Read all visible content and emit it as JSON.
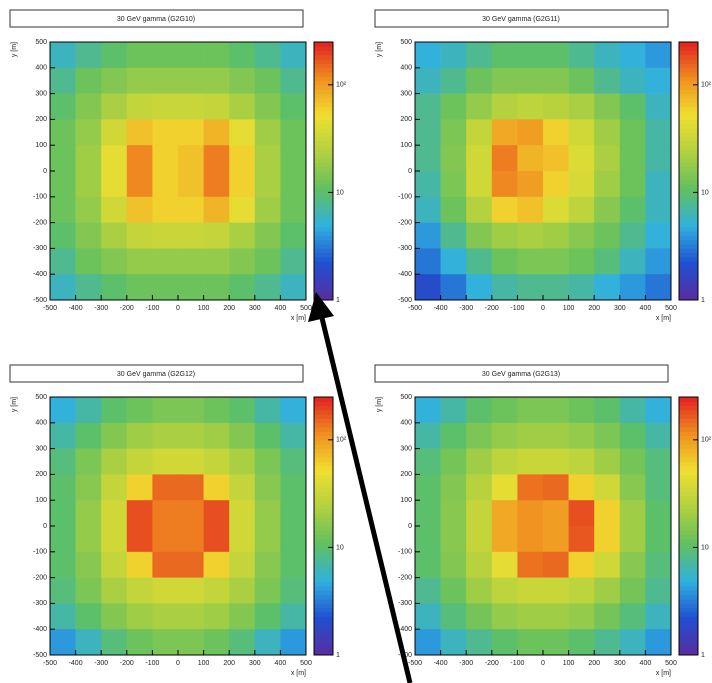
{
  "chart_data": [
    {
      "type": "heatmap",
      "title": "30 GeV gamma (G2G10)",
      "xlabel": "x [m]",
      "ylabel": "y [m]",
      "x": [
        -450,
        -350,
        -250,
        -150,
        -50,
        50,
        150,
        250,
        350,
        450
      ],
      "y": [
        450,
        350,
        250,
        150,
        50,
        -50,
        -150,
        -250,
        -350,
        -450
      ],
      "xlim": [
        -500,
        500
      ],
      "ylim": [
        -500,
        500
      ],
      "xticks": [
        -500,
        -400,
        -300,
        -200,
        -100,
        0,
        100,
        200,
        300,
        400,
        500
      ],
      "yticks": [
        -500,
        -400,
        -300,
        -200,
        -100,
        0,
        100,
        200,
        300,
        400,
        500
      ],
      "zlim": [
        1,
        250
      ],
      "zticks": [
        1,
        10,
        {
          "value": 100,
          "label": "10²"
        }
      ],
      "log_z": true,
      "colormap": [
        "#5a2ca0",
        "#2050d0",
        "#30b0e0",
        "#60c060",
        "#b0d040",
        "#f0e030",
        "#f09020",
        "#e02020"
      ],
      "values": [
        [
          6,
          8,
          10,
          12,
          12,
          12,
          12,
          10,
          8,
          6
        ],
        [
          8,
          12,
          15,
          18,
          18,
          18,
          18,
          15,
          12,
          8
        ],
        [
          10,
          15,
          22,
          30,
          32,
          32,
          30,
          22,
          15,
          10
        ],
        [
          12,
          18,
          35,
          70,
          60,
          60,
          80,
          45,
          20,
          12
        ],
        [
          12,
          20,
          45,
          120,
          60,
          70,
          130,
          60,
          22,
          12
        ],
        [
          12,
          20,
          45,
          120,
          60,
          70,
          130,
          60,
          22,
          12
        ],
        [
          12,
          18,
          35,
          70,
          60,
          60,
          80,
          45,
          20,
          12
        ],
        [
          10,
          15,
          22,
          30,
          32,
          32,
          30,
          22,
          15,
          10
        ],
        [
          8,
          12,
          15,
          18,
          18,
          18,
          18,
          15,
          12,
          8
        ],
        [
          6,
          8,
          10,
          12,
          12,
          12,
          12,
          10,
          8,
          6
        ]
      ]
    },
    {
      "type": "heatmap",
      "title": "30 GeV gamma (G2G11)",
      "xlabel": "x [m]",
      "ylabel": "y [m]",
      "x": [
        -450,
        -350,
        -250,
        -150,
        -50,
        50,
        150,
        250,
        350,
        450
      ],
      "y": [
        450,
        350,
        250,
        150,
        50,
        -50,
        -150,
        -250,
        -350,
        -450
      ],
      "xlim": [
        -500,
        500
      ],
      "ylim": [
        -500,
        500
      ],
      "xticks": [
        -500,
        -400,
        -300,
        -200,
        -100,
        0,
        100,
        200,
        300,
        400,
        500
      ],
      "yticks": [
        -500,
        -400,
        -300,
        -200,
        -100,
        0,
        100,
        200,
        300,
        400,
        500
      ],
      "zlim": [
        1,
        250
      ],
      "zticks": [
        1,
        10,
        {
          "value": 100,
          "label": "10²"
        }
      ],
      "log_z": true,
      "colormap": [
        "#5a2ca0",
        "#2050d0",
        "#30b0e0",
        "#60c060",
        "#b0d040",
        "#f0e030",
        "#f09020",
        "#e02020"
      ],
      "values": [
        [
          5,
          6,
          8,
          10,
          10,
          10,
          8,
          6,
          5,
          4
        ],
        [
          6,
          8,
          12,
          15,
          15,
          15,
          12,
          8,
          6,
          5
        ],
        [
          8,
          12,
          18,
          25,
          28,
          26,
          22,
          15,
          10,
          6
        ],
        [
          8,
          14,
          30,
          90,
          100,
          60,
          35,
          20,
          12,
          7
        ],
        [
          8,
          15,
          35,
          130,
          80,
          70,
          40,
          22,
          12,
          7
        ],
        [
          7,
          14,
          35,
          120,
          100,
          60,
          38,
          20,
          12,
          6
        ],
        [
          6,
          12,
          25,
          60,
          70,
          40,
          28,
          16,
          10,
          6
        ],
        [
          4,
          8,
          15,
          20,
          22,
          20,
          16,
          12,
          8,
          5
        ],
        [
          3,
          5,
          8,
          12,
          14,
          14,
          12,
          9,
          6,
          4
        ],
        [
          2,
          3,
          5,
          7,
          8,
          8,
          7,
          5,
          4,
          3
        ]
      ]
    },
    {
      "type": "heatmap",
      "title": "30 GeV gamma (G2G12)",
      "xlabel": "x [m]",
      "ylabel": "y [m]",
      "x": [
        -450,
        -350,
        -250,
        -150,
        -50,
        50,
        150,
        250,
        350,
        450
      ],
      "y": [
        450,
        350,
        250,
        150,
        50,
        -50,
        -150,
        -250,
        -350,
        -450
      ],
      "xlim": [
        -500,
        500
      ],
      "ylim": [
        -500,
        500
      ],
      "xticks": [
        -500,
        -400,
        -300,
        -200,
        -100,
        0,
        100,
        200,
        300,
        400,
        500
      ],
      "yticks": [
        -500,
        -400,
        -300,
        -200,
        -100,
        0,
        100,
        200,
        300,
        400,
        500
      ],
      "zlim": [
        1,
        250
      ],
      "zticks": [
        1,
        10,
        {
          "value": 100,
          "label": "10²"
        }
      ],
      "log_z": true,
      "colormap": [
        "#5a2ca0",
        "#2050d0",
        "#30b0e0",
        "#60c060",
        "#b0d040",
        "#f0e030",
        "#f09020",
        "#e02020"
      ],
      "values": [
        [
          5,
          7,
          10,
          12,
          14,
          14,
          12,
          10,
          7,
          5
        ],
        [
          7,
          10,
          15,
          20,
          22,
          22,
          20,
          15,
          10,
          7
        ],
        [
          9,
          14,
          22,
          30,
          35,
          35,
          30,
          22,
          14,
          9
        ],
        [
          10,
          16,
          30,
          60,
          150,
          150,
          60,
          30,
          16,
          10
        ],
        [
          10,
          18,
          35,
          180,
          130,
          130,
          180,
          35,
          18,
          10
        ],
        [
          10,
          18,
          35,
          180,
          130,
          130,
          180,
          35,
          18,
          10
        ],
        [
          10,
          16,
          30,
          60,
          150,
          150,
          60,
          30,
          16,
          10
        ],
        [
          9,
          14,
          22,
          30,
          35,
          35,
          30,
          22,
          14,
          9
        ],
        [
          7,
          10,
          15,
          20,
          22,
          22,
          20,
          15,
          10,
          7
        ],
        [
          4,
          6,
          9,
          12,
          14,
          14,
          12,
          9,
          6,
          4
        ]
      ]
    },
    {
      "type": "heatmap",
      "title": "30 GeV gamma (G2G13)",
      "xlabel": "x [m]",
      "ylabel": "y [m]",
      "x": [
        -450,
        -350,
        -250,
        -150,
        -50,
        50,
        150,
        250,
        350,
        450
      ],
      "y": [
        450,
        350,
        250,
        150,
        50,
        -50,
        -150,
        -250,
        -350,
        -450
      ],
      "xlim": [
        -500,
        500
      ],
      "ylim": [
        -500,
        500
      ],
      "xticks": [
        -500,
        -400,
        -300,
        -200,
        -100,
        0,
        100,
        200,
        300,
        400,
        500
      ],
      "yticks": [
        -500,
        -400,
        -300,
        -200,
        -100,
        0,
        100,
        200,
        300,
        400,
        500
      ],
      "zlim": [
        1,
        250
      ],
      "zticks": [
        1,
        10,
        {
          "value": 100,
          "label": "10²"
        }
      ],
      "log_z": true,
      "colormap": [
        "#5a2ca0",
        "#2050d0",
        "#30b0e0",
        "#60c060",
        "#b0d040",
        "#f0e030",
        "#f09020",
        "#e02020"
      ],
      "values": [
        [
          5,
          7,
          10,
          12,
          14,
          14,
          12,
          10,
          7,
          5
        ],
        [
          7,
          10,
          14,
          18,
          20,
          20,
          18,
          14,
          10,
          7
        ],
        [
          9,
          13,
          20,
          28,
          32,
          32,
          28,
          20,
          13,
          9
        ],
        [
          10,
          15,
          26,
          45,
          140,
          150,
          60,
          35,
          16,
          9
        ],
        [
          10,
          16,
          30,
          90,
          110,
          100,
          180,
          60,
          20,
          10
        ],
        [
          10,
          16,
          30,
          90,
          110,
          100,
          170,
          60,
          20,
          10
        ],
        [
          10,
          15,
          26,
          45,
          140,
          150,
          60,
          35,
          16,
          9
        ],
        [
          8,
          12,
          20,
          28,
          32,
          32,
          28,
          20,
          13,
          8
        ],
        [
          6,
          9,
          13,
          18,
          20,
          20,
          18,
          13,
          9,
          6
        ],
        [
          4,
          6,
          8,
          10,
          12,
          12,
          10,
          8,
          6,
          4
        ]
      ]
    }
  ]
}
